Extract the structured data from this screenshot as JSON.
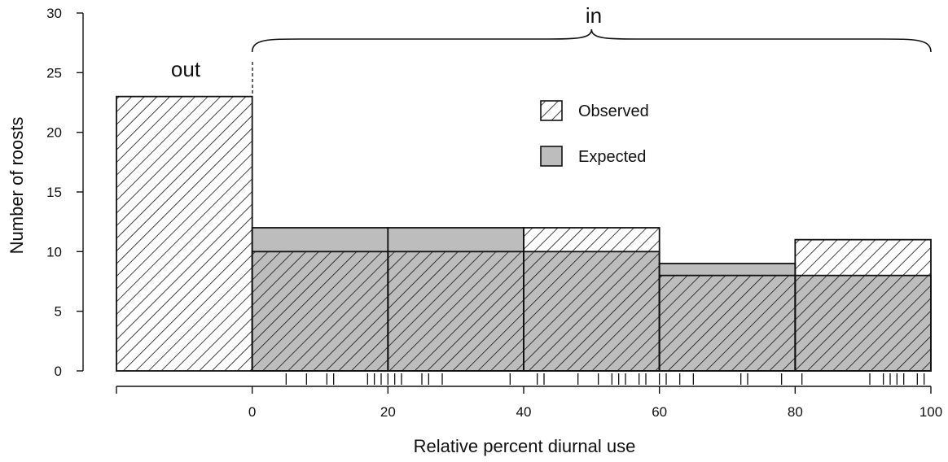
{
  "chart_data": {
    "type": "bar",
    "title": "",
    "xlabel": "Relative percent diurnal use",
    "ylabel": "Number of roosts",
    "ylim": [
      0,
      30
    ],
    "xlim": [
      -20,
      100
    ],
    "y_ticks": [
      0,
      5,
      10,
      15,
      20,
      25,
      30
    ],
    "x_ticks": [
      0,
      20,
      40,
      60,
      80,
      100
    ],
    "grid": false,
    "legend_position": "top-center",
    "bins": [
      {
        "label": "out",
        "x0": -20,
        "x1": 0,
        "observed": 23,
        "expected": null
      },
      {
        "label": "0-20",
        "x0": 0,
        "x1": 20,
        "observed": 10,
        "expected": 12
      },
      {
        "label": "20-40",
        "x0": 20,
        "x1": 40,
        "observed": 10,
        "expected": 12
      },
      {
        "label": "40-60",
        "x0": 40,
        "x1": 60,
        "observed": 12,
        "expected": 10
      },
      {
        "label": "60-80",
        "x0": 60,
        "x1": 80,
        "observed": 8,
        "expected": 9
      },
      {
        "label": "80-100",
        "x0": 80,
        "x1": 100,
        "observed": 11,
        "expected": 8
      }
    ],
    "series": [
      {
        "name": "Observed",
        "style": "hatched",
        "color": "#ffffff"
      },
      {
        "name": "Expected",
        "style": "filled",
        "color": "#bdbdbd"
      }
    ],
    "rug": [
      5,
      8,
      11,
      12,
      17,
      18,
      19,
      20,
      21,
      22,
      25,
      26,
      28,
      38,
      42,
      43,
      48,
      51,
      53,
      54,
      55,
      57,
      58,
      60,
      61,
      63,
      65,
      72,
      73,
      78,
      81,
      91,
      93,
      94,
      95,
      96,
      98,
      99
    ],
    "annotations": {
      "out": "out",
      "in": "in"
    }
  }
}
